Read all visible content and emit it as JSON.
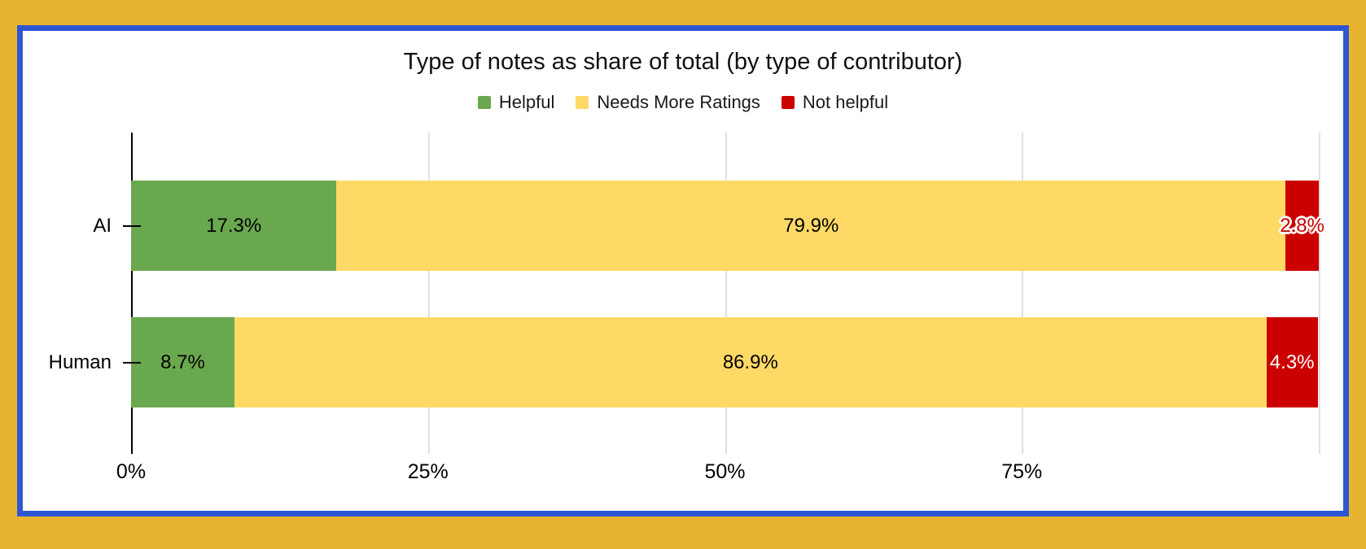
{
  "frame": {
    "page_background": "#e8b32f",
    "border_color": "#2e56d3",
    "chart_background": "#ffffff"
  },
  "chart_data": {
    "type": "bar",
    "orientation": "horizontal",
    "stacked": true,
    "title": "Type of notes as share of total (by type of contributor)",
    "categories": [
      "AI",
      "Human"
    ],
    "series": [
      {
        "name": "Helpful",
        "color": "#6aa84f",
        "values": [
          17.3,
          8.7
        ]
      },
      {
        "name": "Needs More Ratings",
        "color": "#ffd966",
        "values": [
          79.9,
          86.9
        ]
      },
      {
        "name": "Not helpful",
        "color": "#cc0000",
        "values": [
          2.8,
          4.3
        ]
      }
    ],
    "value_labels": [
      [
        {
          "text": "17.3%",
          "style": "black"
        },
        {
          "text": "79.9%",
          "style": "black"
        },
        {
          "text": "2.8%",
          "style": "halo"
        }
      ],
      [
        {
          "text": "8.7%",
          "style": "black"
        },
        {
          "text": "86.9%",
          "style": "black"
        },
        {
          "text": "4.3%",
          "style": "white"
        }
      ]
    ],
    "xlim": [
      0,
      100
    ],
    "x_ticks": [
      {
        "value": 0,
        "label": "0%"
      },
      {
        "value": 25,
        "label": "25%"
      },
      {
        "value": 50,
        "label": "50%"
      },
      {
        "value": 75,
        "label": "75%"
      },
      {
        "value": 100,
        "label": ""
      }
    ],
    "grid": true,
    "legend_position": "top",
    "gridline_color": "#e0e0e0",
    "axis_color": "#000000"
  }
}
